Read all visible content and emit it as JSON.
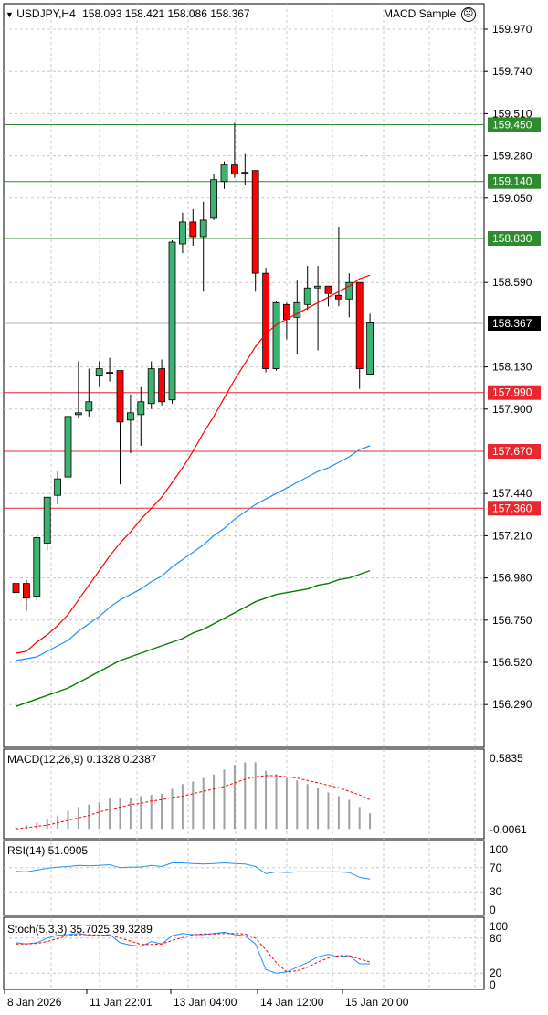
{
  "header": {
    "symbol": "USDJPY,H4",
    "ohlc": "158.093 158.421 158.086 158.367",
    "ea_label": "MACD Sample",
    "ea_icon": "sad-face-icon"
  },
  "price_axis": {
    "ticks": [
      "159.970",
      "159.740",
      "159.510",
      "159.280",
      "159.050",
      "158.590",
      "158.130",
      "157.900",
      "157.440",
      "157.210",
      "156.980",
      "156.750",
      "156.520",
      "156.290"
    ]
  },
  "level_lines": [
    {
      "label": "159.450",
      "value": 159.45,
      "color": "#2e8b2e"
    },
    {
      "label": "159.140",
      "value": 159.14,
      "color": "#2e8b2e"
    },
    {
      "label": "158.830",
      "value": 158.83,
      "color": "#2e8b2e"
    },
    {
      "label": "157.990",
      "value": 157.99,
      "color": "#e8282e"
    },
    {
      "label": "157.670",
      "value": 157.67,
      "color": "#e8282e"
    },
    {
      "label": "157.360",
      "value": 157.36,
      "color": "#e8282e"
    }
  ],
  "current_price": {
    "label": "158.367",
    "value": 158.367
  },
  "time_axis": [
    "8 Jan 2026",
    "11 Jan 22:01",
    "13 Jan 04:00",
    "14 Jan 12:00",
    "15 Jan 20:00"
  ],
  "macd": {
    "title": "MACD(12,26,9) 0.1328 0.2387",
    "ticks": [
      "0.5835",
      "-0.0061"
    ]
  },
  "rsi": {
    "title": "RSI(14) 51.0905",
    "ticks": [
      "100",
      "70",
      "30",
      "0"
    ]
  },
  "stoch": {
    "title": "Stoch(5,3,3) 35.7025 39.3289",
    "ticks": [
      "100",
      "80",
      "20",
      "0"
    ]
  },
  "colors": {
    "bull": "#3cb371",
    "bear": "#ff0000",
    "ma_fast": "#ff0000",
    "ma_mid": "#1e90ff",
    "ma_slow": "#008000",
    "macd_signal": "#ff0000",
    "rsi": "#1e90ff",
    "stoch_main": "#1e90ff",
    "stoch_signal": "#ff0000"
  },
  "chart_data": {
    "type": "candlestick",
    "title": "USDJPY,H4",
    "ylim": [
      156.2,
      160.02
    ],
    "candles": [
      {
        "o": 156.95,
        "h": 157.0,
        "l": 156.78,
        "c": 156.9
      },
      {
        "o": 156.95,
        "h": 156.97,
        "l": 156.8,
        "c": 156.87
      },
      {
        "o": 156.88,
        "h": 157.21,
        "l": 156.86,
        "c": 157.2
      },
      {
        "o": 157.17,
        "h": 157.42,
        "l": 157.13,
        "c": 157.42
      },
      {
        "o": 157.43,
        "h": 157.56,
        "l": 157.38,
        "c": 157.52
      },
      {
        "o": 157.53,
        "h": 157.9,
        "l": 157.36,
        "c": 157.86
      },
      {
        "o": 157.87,
        "h": 158.16,
        "l": 157.85,
        "c": 157.88
      },
      {
        "o": 157.89,
        "h": 158.12,
        "l": 157.86,
        "c": 157.94
      },
      {
        "o": 158.08,
        "h": 158.16,
        "l": 158.02,
        "c": 158.12
      },
      {
        "o": 158.1,
        "h": 158.18,
        "l": 158.05,
        "c": 158.1
      },
      {
        "o": 158.11,
        "h": 158.11,
        "l": 157.49,
        "c": 157.83
      },
      {
        "o": 157.84,
        "h": 157.98,
        "l": 157.66,
        "c": 157.88
      },
      {
        "o": 157.87,
        "h": 158.02,
        "l": 157.7,
        "c": 157.94
      },
      {
        "o": 157.93,
        "h": 158.16,
        "l": 157.9,
        "c": 158.12
      },
      {
        "o": 158.12,
        "h": 158.17,
        "l": 157.92,
        "c": 157.94
      },
      {
        "o": 157.95,
        "h": 158.82,
        "l": 157.93,
        "c": 158.81
      },
      {
        "o": 158.8,
        "h": 158.97,
        "l": 158.75,
        "c": 158.92
      },
      {
        "o": 158.92,
        "h": 158.99,
        "l": 158.79,
        "c": 158.84
      },
      {
        "o": 158.84,
        "h": 159.03,
        "l": 158.54,
        "c": 158.93
      },
      {
        "o": 158.94,
        "h": 159.18,
        "l": 158.93,
        "c": 159.15
      },
      {
        "o": 159.14,
        "h": 159.25,
        "l": 159.1,
        "c": 159.23
      },
      {
        "o": 159.23,
        "h": 159.46,
        "l": 159.16,
        "c": 159.18
      },
      {
        "o": 159.19,
        "h": 159.29,
        "l": 159.12,
        "c": 159.19
      },
      {
        "o": 159.2,
        "h": 159.2,
        "l": 158.54,
        "c": 158.64
      },
      {
        "o": 158.64,
        "h": 158.67,
        "l": 158.1,
        "c": 158.12
      },
      {
        "o": 158.12,
        "h": 158.49,
        "l": 158.11,
        "c": 158.48
      },
      {
        "o": 158.47,
        "h": 158.48,
        "l": 158.28,
        "c": 158.39
      },
      {
        "o": 158.4,
        "h": 158.6,
        "l": 158.2,
        "c": 158.48
      },
      {
        "o": 158.47,
        "h": 158.68,
        "l": 158.44,
        "c": 158.56
      },
      {
        "o": 158.56,
        "h": 158.68,
        "l": 158.22,
        "c": 158.57
      },
      {
        "o": 158.57,
        "h": 158.57,
        "l": 158.46,
        "c": 158.53
      },
      {
        "o": 158.52,
        "h": 158.89,
        "l": 158.46,
        "c": 158.5
      },
      {
        "o": 158.5,
        "h": 158.64,
        "l": 158.4,
        "c": 158.59
      },
      {
        "o": 158.59,
        "h": 158.59,
        "l": 158.01,
        "c": 158.12
      },
      {
        "o": 158.09,
        "h": 158.42,
        "l": 158.09,
        "c": 158.37
      }
    ],
    "ma_fast": [
      156.57,
      156.58,
      156.63,
      156.67,
      156.72,
      156.78,
      156.86,
      156.94,
      157.02,
      157.1,
      157.17,
      157.23,
      157.3,
      157.36,
      157.42,
      157.5,
      157.58,
      157.67,
      157.77,
      157.86,
      157.96,
      158.06,
      158.15,
      158.24,
      158.31,
      158.36,
      158.39,
      158.42,
      158.45,
      158.48,
      158.51,
      158.54,
      158.57,
      158.61,
      158.63
    ],
    "ma_mid": [
      156.53,
      156.54,
      156.55,
      156.58,
      156.61,
      156.64,
      156.69,
      156.73,
      156.77,
      156.82,
      156.86,
      156.89,
      156.92,
      156.96,
      156.99,
      157.04,
      157.08,
      157.12,
      157.16,
      157.21,
      157.25,
      157.3,
      157.34,
      157.38,
      157.41,
      157.44,
      157.47,
      157.5,
      157.53,
      157.56,
      157.58,
      157.61,
      157.64,
      157.68,
      157.7
    ],
    "ma_slow": [
      156.28,
      156.3,
      156.32,
      156.34,
      156.36,
      156.38,
      156.41,
      156.44,
      156.47,
      156.5,
      156.53,
      156.55,
      156.57,
      156.59,
      156.61,
      156.63,
      156.65,
      156.68,
      156.7,
      156.73,
      156.76,
      156.79,
      156.82,
      156.85,
      156.87,
      156.89,
      156.9,
      156.91,
      156.92,
      156.94,
      156.95,
      156.97,
      156.98,
      157.0,
      157.02
    ],
    "macd_ylim": [
      -0.0061,
      0.5835
    ],
    "macd_hist": [
      0.01,
      0.03,
      0.05,
      0.08,
      0.11,
      0.15,
      0.18,
      0.2,
      0.22,
      0.25,
      0.25,
      0.26,
      0.27,
      0.28,
      0.29,
      0.33,
      0.37,
      0.39,
      0.42,
      0.45,
      0.49,
      0.53,
      0.55,
      0.55,
      0.48,
      0.45,
      0.42,
      0.4,
      0.37,
      0.34,
      0.3,
      0.27,
      0.24,
      0.18,
      0.13
    ],
    "macd_signal": [
      0.0,
      0.01,
      0.02,
      0.03,
      0.05,
      0.07,
      0.09,
      0.11,
      0.14,
      0.16,
      0.18,
      0.2,
      0.21,
      0.23,
      0.24,
      0.26,
      0.27,
      0.29,
      0.31,
      0.33,
      0.35,
      0.38,
      0.41,
      0.43,
      0.44,
      0.44,
      0.43,
      0.42,
      0.4,
      0.38,
      0.36,
      0.34,
      0.31,
      0.28,
      0.24
    ],
    "rsi": [
      64,
      63,
      66,
      69,
      71,
      72,
      74,
      73,
      74,
      75,
      70,
      71,
      71,
      74,
      72,
      78,
      78,
      77,
      76,
      77,
      78,
      77,
      76,
      72,
      60,
      63,
      62,
      63,
      63,
      63,
      63,
      63,
      62,
      54,
      51
    ],
    "stoch_main": [
      72,
      70,
      72,
      80,
      85,
      86,
      88,
      85,
      84,
      86,
      72,
      68,
      66,
      74,
      70,
      84,
      88,
      86,
      86,
      88,
      90,
      86,
      84,
      70,
      26,
      20,
      22,
      30,
      38,
      48,
      52,
      48,
      50,
      36,
      36
    ],
    "stoch_signal": [
      70,
      70,
      71,
      74,
      79,
      84,
      86,
      86,
      85,
      85,
      80,
      75,
      69,
      69,
      70,
      76,
      81,
      86,
      87,
      87,
      88,
      88,
      87,
      80,
      60,
      38,
      22,
      24,
      30,
      39,
      46,
      50,
      50,
      44,
      39
    ]
  }
}
